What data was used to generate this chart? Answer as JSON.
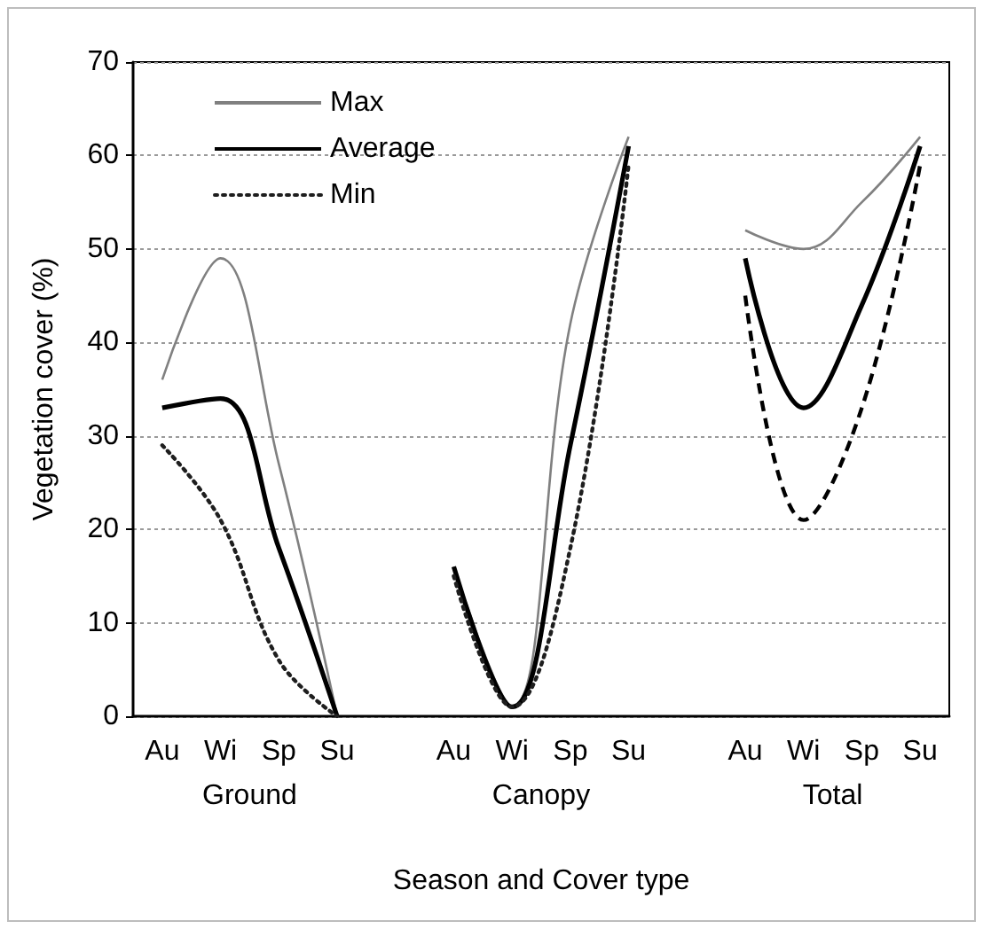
{
  "chart_data": {
    "type": "line",
    "xlabel": "Season and Cover type",
    "ylabel": "Vegetation cover (%)",
    "categories": [
      "Au",
      "Wi",
      "Sp",
      "Su",
      null,
      "Au",
      "Wi",
      "Sp",
      "Su",
      null,
      "Au",
      "Wi",
      "Sp",
      "Su"
    ],
    "series": [
      {
        "name": "Max",
        "color": "#808080",
        "line_style": "solid",
        "values": [
          36,
          49,
          27,
          0,
          null,
          16,
          1,
          42,
          62,
          null,
          52,
          50,
          55,
          62
        ]
      },
      {
        "name": "Average",
        "color": "#000000",
        "line_style": "solid",
        "values": [
          33,
          34,
          18,
          0,
          null,
          16,
          1,
          29,
          61,
          null,
          49,
          33,
          44,
          61
        ]
      },
      {
        "name": "Min",
        "color": "#1e1e1e",
        "line_style": "dotted",
        "values": [
          29,
          21,
          6,
          0,
          null,
          15,
          1,
          18,
          59,
          null,
          null,
          null,
          null,
          null
        ]
      },
      {
        "color": "#000000",
        "line_style": "dashed",
        "values": [
          null,
          null,
          null,
          null,
          null,
          null,
          null,
          null,
          null,
          null,
          45,
          21,
          33,
          59
        ]
      }
    ],
    "annotations": [
      "Ground",
      "Canopy",
      "Total"
    ],
    "ylim": [
      0,
      70
    ],
    "yticks": [
      0,
      10,
      20,
      30,
      40,
      50,
      60,
      70
    ],
    "grid": "y",
    "legend": "top left",
    "marker": "none"
  }
}
